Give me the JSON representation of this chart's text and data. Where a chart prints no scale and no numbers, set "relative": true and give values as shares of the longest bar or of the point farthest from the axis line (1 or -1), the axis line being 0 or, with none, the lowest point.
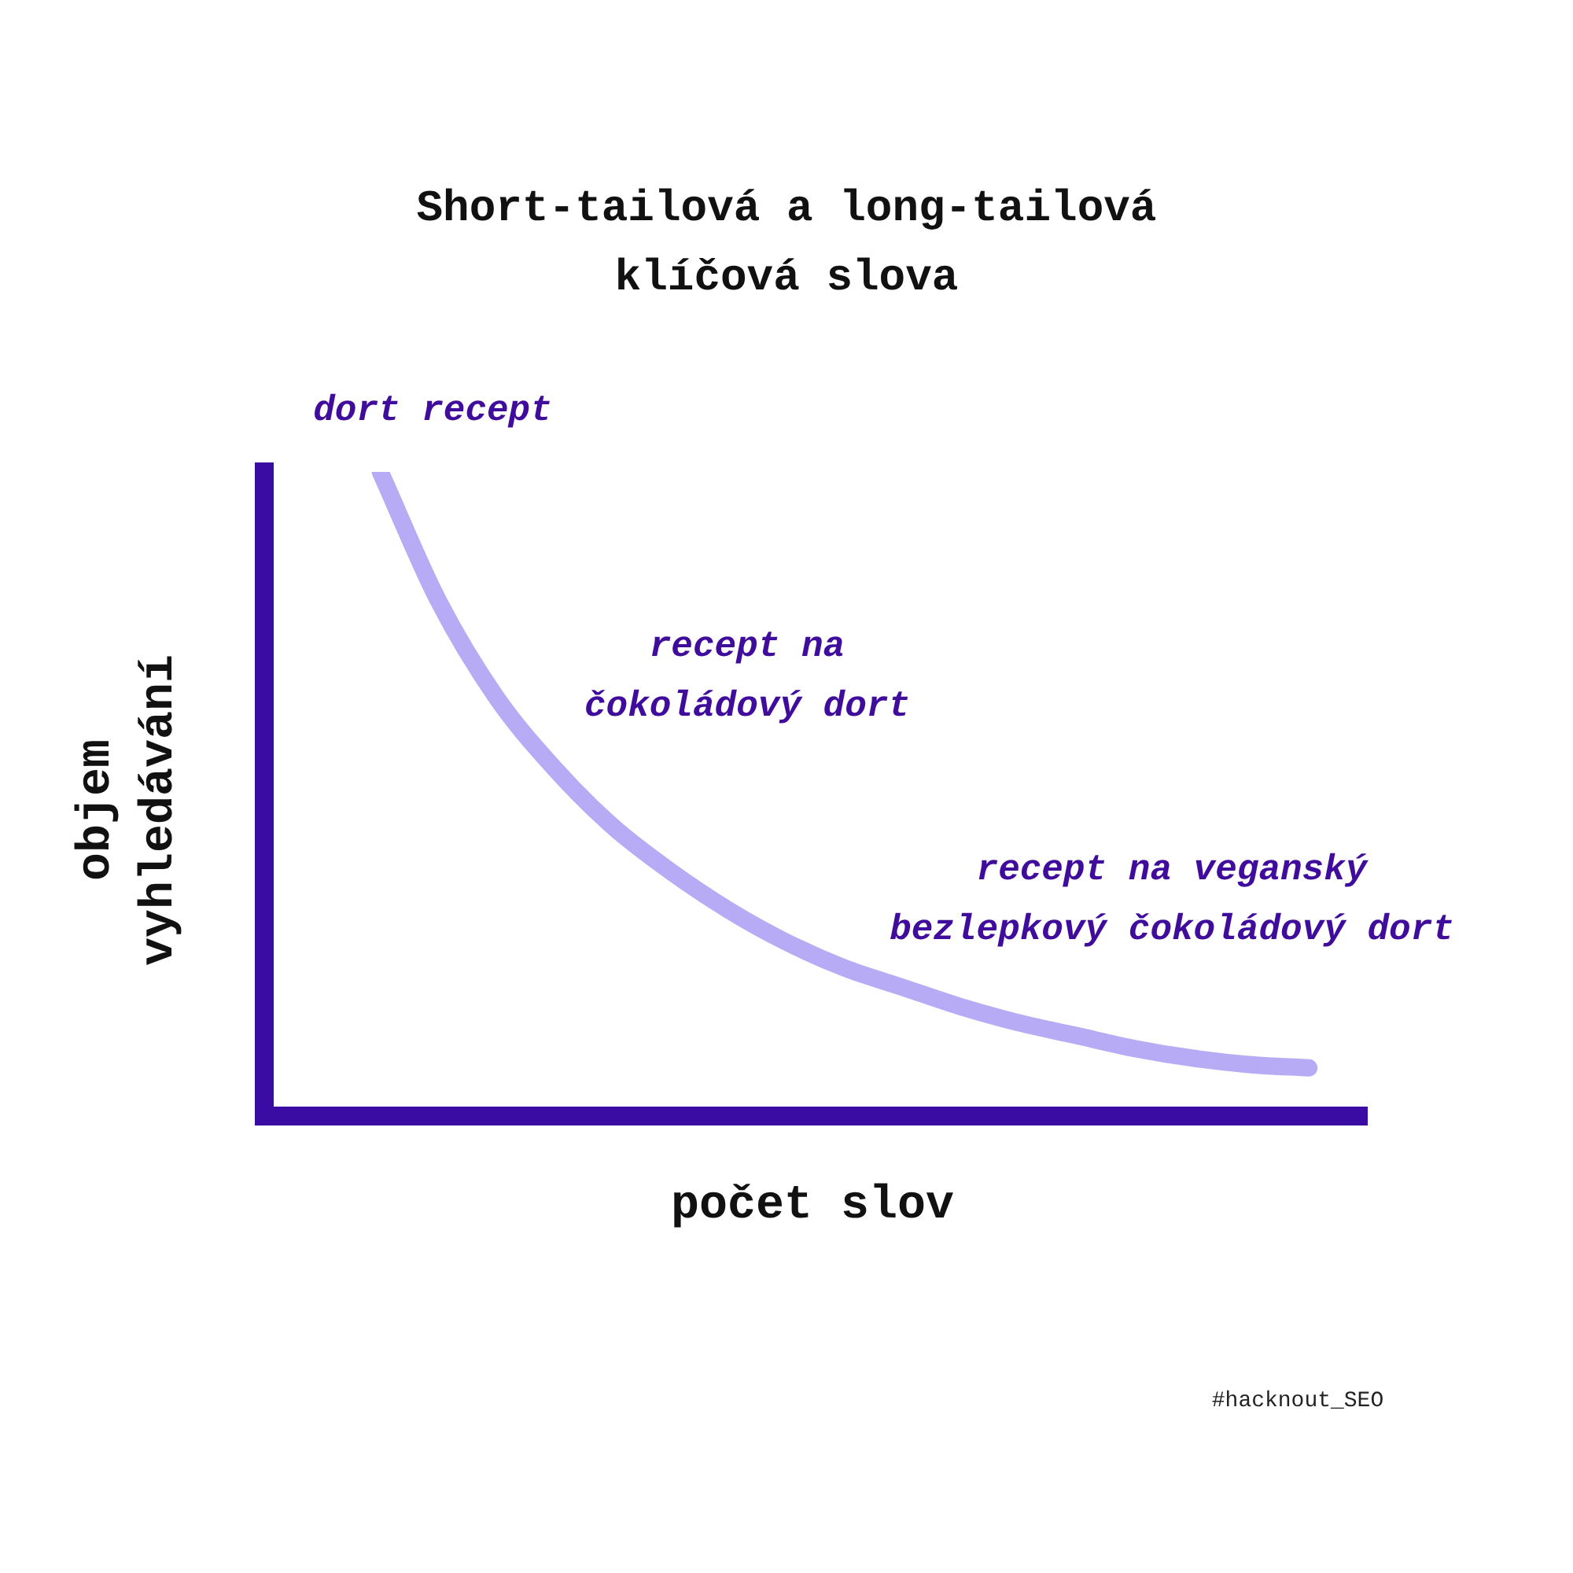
{
  "chart_data": {
    "type": "line",
    "relative": true,
    "title": "Short-tailová a long-tailová\nklíčová slova",
    "xlabel": "počet slov",
    "ylabel": "objem\nvyhledávání",
    "categories": [
      null,
      null,
      null,
      null,
      null,
      null,
      null,
      null,
      null,
      null,
      null,
      null,
      null,
      null,
      null,
      null,
      null,
      null,
      null,
      null
    ],
    "series": [
      {
        "color": "#b8abf5",
        "values": [
          null,
          null,
          1,
          0.8,
          0.65,
          0.54,
          0.45,
          0.38,
          0.32,
          0.27,
          0.23,
          0.2,
          0.17,
          0.145,
          0.125,
          0.105,
          0.09,
          0.08,
          0.075,
          null
        ]
      }
    ],
    "annotations": [
      "dort recept",
      "recept na\nčokoládový dort",
      "recept na veganský\nbezlepkový čokoládový dort",
      "#hacknout_SEO"
    ],
    "marker": "none"
  }
}
